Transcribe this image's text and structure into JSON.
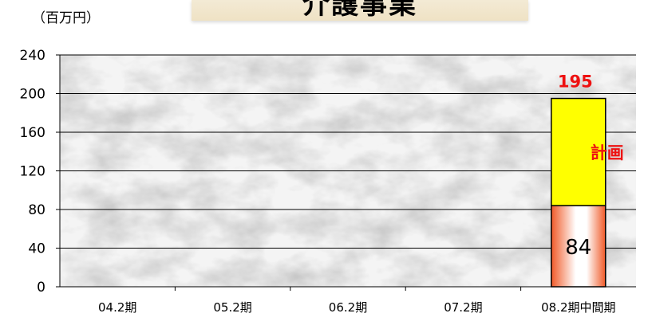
{
  "title": "介護事業",
  "unit_label": "（百万円）",
  "chart_data": {
    "type": "bar",
    "title": "介護事業",
    "ylabel": "（百万円）",
    "xlabel": "",
    "ylim": [
      0,
      240
    ],
    "yticks": [
      0,
      40,
      80,
      120,
      160,
      200,
      240
    ],
    "grid": true,
    "categories": [
      "04.2期",
      "05.2期",
      "06.2期",
      "07.2期",
      "08.2期中間期"
    ],
    "stacked": true,
    "series": [
      {
        "name": "",
        "values": [
          null,
          null,
          null,
          null,
          84
        ],
        "color": "#f05a28",
        "label": "84"
      },
      {
        "name": "計画",
        "values": [
          null,
          null,
          null,
          null,
          111
        ],
        "color": "#ffff00"
      }
    ],
    "total_label": "195",
    "annotations": [
      {
        "text": "計画",
        "color": "#ee1111"
      }
    ]
  },
  "colors": {
    "actual_bar": "#f05a28",
    "plan_bar": "#ffff00",
    "annotation": "#ee1111"
  }
}
